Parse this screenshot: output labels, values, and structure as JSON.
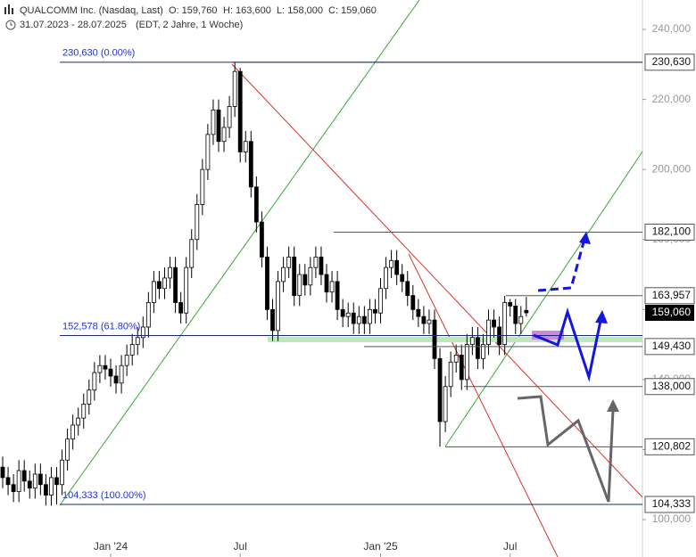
{
  "header": {
    "ohlc": [
      "O: 159,760",
      "H: 163,600",
      "L: 158,000",
      "C: 159,060"
    ],
    "range": "31.07.2023 - 28.07.2025",
    "info": "(EDT, 2 Jahre, 1 Woche)"
  },
  "chart_data": {
    "type": "candlestick",
    "title": "QUALCOMM Inc. (Nasdaq, Last)",
    "categories": [
      null,
      null,
      null,
      null,
      null,
      null,
      null,
      null,
      null,
      null,
      null,
      null,
      null,
      null,
      null,
      null,
      null,
      null,
      null,
      null,
      "Jan '24",
      null,
      null,
      null,
      null,
      null,
      null,
      null,
      null,
      null,
      null,
      null,
      null,
      null,
      null,
      null,
      null,
      null,
      null,
      null,
      null,
      null,
      null,
      null,
      "Jul",
      null,
      null,
      null,
      null,
      null,
      null,
      null,
      null,
      null,
      null,
      null,
      null,
      null,
      null,
      null,
      null,
      null,
      null,
      null,
      null,
      null,
      null,
      null,
      null,
      null,
      "Jan '25",
      null,
      null,
      null,
      null,
      null,
      null,
      null,
      null,
      null,
      null,
      null,
      null,
      null,
      null,
      null,
      null,
      null,
      null,
      null,
      null,
      null,
      null,
      null,
      "Jul",
      null,
      null,
      null
    ],
    "open": [
      115000,
      112000,
      110000,
      108000,
      114000,
      111000,
      109000,
      113000,
      110000,
      107000,
      112000,
      110000,
      117000,
      123000,
      127000,
      129000,
      133000,
      137000,
      142000,
      144000,
      143000,
      141000,
      139000,
      144000,
      147000,
      150000,
      152000,
      155000,
      162000,
      168000,
      166000,
      169000,
      172000,
      162000,
      159000,
      172000,
      180000,
      190000,
      200000,
      210000,
      217000,
      208000,
      212000,
      218000,
      228000,
      205000,
      208000,
      195000,
      185000,
      175000,
      160000,
      154000,
      168000,
      172000,
      175000,
      164000,
      170000,
      167000,
      172000,
      175000,
      170000,
      165000,
      168000,
      160000,
      158000,
      159000,
      156000,
      158000,
      156000,
      160000,
      159000,
      166000,
      172000,
      174000,
      170000,
      168000,
      164000,
      160000,
      158000,
      156000,
      157000,
      146000,
      128000,
      138000,
      145000,
      147000,
      140000,
      150000,
      152000,
      146000,
      150000,
      157000,
      155000,
      150000,
      162000,
      161000,
      156000,
      159760
    ],
    "high": [
      118000,
      115000,
      113000,
      117000,
      117000,
      114000,
      116000,
      116000,
      113000,
      115000,
      115000,
      120000,
      126000,
      130000,
      132000,
      136000,
      140000,
      145000,
      147000,
      147000,
      146000,
      144000,
      147000,
      150000,
      153000,
      155000,
      158000,
      165000,
      171000,
      171000,
      172000,
      175000,
      175000,
      165000,
      175000,
      183000,
      193000,
      203000,
      213000,
      220000,
      220000,
      215000,
      221000,
      230630,
      229000,
      211000,
      211000,
      198000,
      188000,
      178000,
      163000,
      171000,
      175000,
      178000,
      178000,
      173000,
      173000,
      175000,
      178000,
      178000,
      173000,
      171000,
      171000,
      163000,
      162000,
      162000,
      161000,
      161000,
      163000,
      163000,
      169000,
      175000,
      177000,
      177000,
      173000,
      171000,
      167000,
      163000,
      161000,
      160000,
      160000,
      149000,
      141000,
      148000,
      150000,
      150000,
      153000,
      155000,
      155000,
      153000,
      160000,
      160000,
      158000,
      163900,
      163000,
      163000,
      161000,
      163600
    ],
    "low": [
      109000,
      107000,
      105000,
      105000,
      108000,
      106000,
      106000,
      107000,
      104000,
      104000,
      104333,
      107000,
      114000,
      120000,
      124000,
      126000,
      130000,
      134000,
      139000,
      140000,
      138000,
      136000,
      136000,
      141000,
      144000,
      147000,
      149000,
      152000,
      159000,
      163000,
      163000,
      166000,
      159000,
      156000,
      156000,
      169000,
      177000,
      187000,
      197000,
      207000,
      205000,
      205000,
      209000,
      215000,
      202000,
      202000,
      192000,
      182000,
      172000,
      157000,
      151000,
      151000,
      165000,
      169000,
      161000,
      161000,
      164000,
      164000,
      169000,
      167000,
      162000,
      162000,
      157000,
      155000,
      155000,
      153000,
      153000,
      153000,
      153000,
      156000,
      156000,
      163000,
      169000,
      167000,
      165000,
      161000,
      157000,
      155000,
      153000,
      153000,
      143000,
      120802,
      125000,
      135000,
      142000,
      137000,
      137000,
      147000,
      143000,
      143000,
      147000,
      152000,
      147000,
      147000,
      158000,
      153000,
      153000,
      158000
    ],
    "close": [
      112000,
      110000,
      108000,
      114000,
      111000,
      109000,
      113000,
      110000,
      107000,
      112000,
      110000,
      117000,
      123000,
      127000,
      129000,
      133000,
      137000,
      142000,
      144000,
      143000,
      141000,
      139000,
      144000,
      147000,
      150000,
      152000,
      155000,
      162000,
      168000,
      166000,
      169000,
      172000,
      162000,
      159000,
      172000,
      180000,
      190000,
      200000,
      210000,
      217000,
      208000,
      212000,
      218000,
      228000,
      205000,
      208000,
      195000,
      185000,
      175000,
      160000,
      154000,
      168000,
      172000,
      175000,
      164000,
      170000,
      167000,
      172000,
      175000,
      170000,
      165000,
      168000,
      160000,
      158000,
      159000,
      156000,
      158000,
      156000,
      160000,
      159000,
      166000,
      172000,
      174000,
      170000,
      168000,
      164000,
      160000,
      158000,
      156000,
      157000,
      146000,
      128000,
      138000,
      145000,
      147000,
      140000,
      150000,
      152000,
      146000,
      150000,
      157000,
      155000,
      150000,
      162000,
      161000,
      156000,
      158000,
      159060
    ],
    "ylim": [
      95000,
      248400
    ],
    "yticks": [
      {
        "value": 100000,
        "label": "100,000"
      },
      {
        "value": 120000,
        "label": "120,000"
      },
      {
        "value": 140000,
        "label": "140,000"
      },
      {
        "value": 160000,
        "label": "160,000"
      },
      {
        "value": 180000,
        "label": "180,000"
      },
      {
        "value": 200000,
        "label": "200,000"
      },
      {
        "value": 220000,
        "label": "220,000"
      },
      {
        "value": 240000,
        "label": "240,000"
      }
    ],
    "levels": [
      {
        "value": 230630,
        "label": "230,630"
      },
      {
        "value": 182100,
        "label": "182,100"
      },
      {
        "value": 163957,
        "label": "163,957"
      },
      {
        "value": 149430,
        "label": "149,430"
      },
      {
        "value": 138000,
        "label": "138,000"
      },
      {
        "value": 120802,
        "label": "120,802"
      },
      {
        "value": 104333,
        "label": "104,333"
      }
    ],
    "last": {
      "value": 159060,
      "label": "159,060"
    },
    "fib_levels": [
      {
        "value": 230630,
        "label": "230,630 (0.00%)"
      },
      {
        "value": 152578,
        "label": "152,578 (61.80%)"
      },
      {
        "value": 104333,
        "label": "104,333 (100.00%)"
      }
    ]
  }
}
